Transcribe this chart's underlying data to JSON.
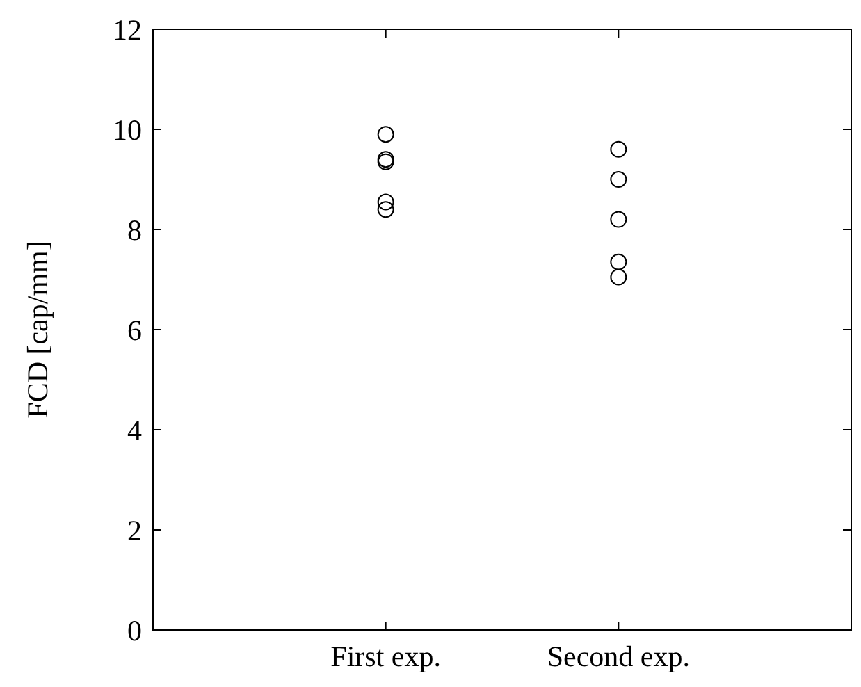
{
  "chart_data": {
    "type": "scatter",
    "ylabel": "FCD [cap/mm]",
    "categories": [
      "First exp.",
      "Second exp."
    ],
    "marker": "circle",
    "grid": false,
    "series": [
      {
        "color": "#000000",
        "x": [
          "First exp.",
          "First exp.",
          "First exp.",
          "First exp.",
          "First exp."
        ],
        "values": [
          9.9,
          9.4,
          9.35,
          8.55,
          8.4
        ]
      },
      {
        "color": "#000000",
        "x": [
          "Second exp.",
          "Second exp.",
          "Second exp.",
          "Second exp.",
          "Second exp."
        ],
        "values": [
          9.6,
          9.0,
          8.2,
          7.35,
          7.05
        ]
      }
    ],
    "ylim": [
      0,
      12
    ],
    "yticks": [
      0,
      2,
      4,
      6,
      8,
      10,
      12
    ]
  }
}
